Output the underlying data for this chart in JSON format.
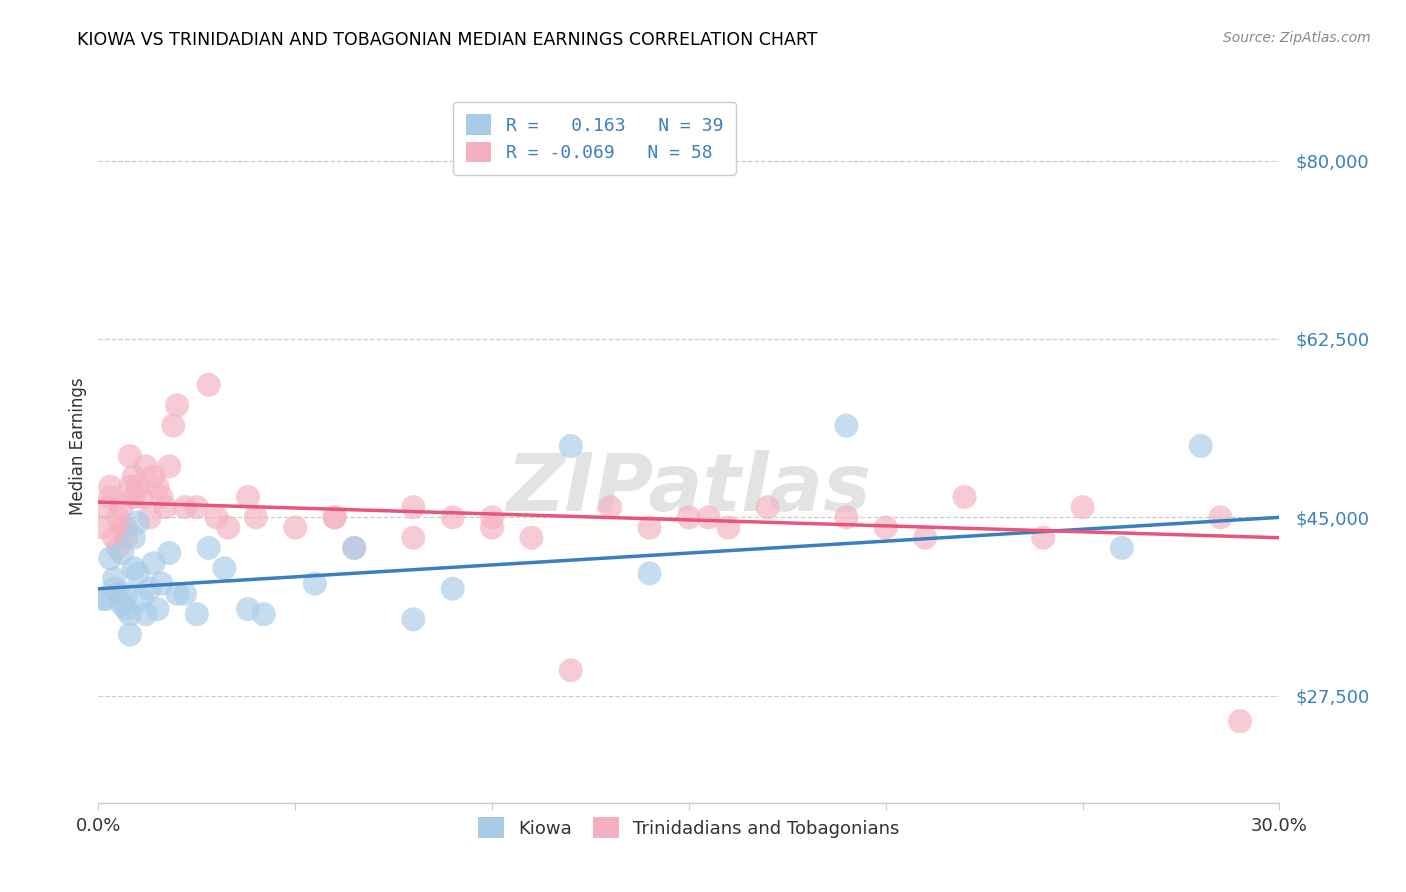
{
  "title": "KIOWA VS TRINIDADIAN AND TOBAGONIAN MEDIAN EARNINGS CORRELATION CHART",
  "source": "Source: ZipAtlas.com",
  "ylabel": "Median Earnings",
  "yticks": [
    27500,
    45000,
    62500,
    80000
  ],
  "ytick_labels": [
    "$27,500",
    "$45,000",
    "$62,500",
    "$80,000"
  ],
  "xlim": [
    0.0,
    0.3
  ],
  "ylim": [
    17000,
    87000
  ],
  "watermark": "ZIPatlas",
  "legend_r_kiowa": "0.163",
  "legend_n_kiowa": "39",
  "legend_r_tnt": "-0.069",
  "legend_n_tnt": "58",
  "kiowa_color": "#a8cce8",
  "tnt_color": "#f4b0c0",
  "kiowa_line_color": "#3a7fc1",
  "tnt_line_color": "#e8547a",
  "kiowa_x": [
    0.001,
    0.002,
    0.003,
    0.004,
    0.004,
    0.005,
    0.006,
    0.006,
    0.007,
    0.007,
    0.008,
    0.008,
    0.009,
    0.009,
    0.01,
    0.01,
    0.011,
    0.012,
    0.013,
    0.014,
    0.015,
    0.016,
    0.018,
    0.02,
    0.022,
    0.025,
    0.028,
    0.032,
    0.038,
    0.042,
    0.055,
    0.065,
    0.08,
    0.09,
    0.12,
    0.14,
    0.19,
    0.26,
    0.28
  ],
  "kiowa_y": [
    37000,
    37000,
    41000,
    38000,
    39000,
    37500,
    41500,
    36500,
    37500,
    36000,
    33500,
    35500,
    43000,
    40000,
    44500,
    39500,
    37000,
    35500,
    38000,
    40500,
    36000,
    38500,
    41500,
    37500,
    37500,
    35500,
    42000,
    40000,
    36000,
    35500,
    38500,
    42000,
    35000,
    38000,
    52000,
    39500,
    54000,
    42000,
    52000
  ],
  "tnt_x": [
    0.001,
    0.002,
    0.003,
    0.003,
    0.004,
    0.005,
    0.005,
    0.006,
    0.006,
    0.007,
    0.007,
    0.008,
    0.008,
    0.009,
    0.009,
    0.01,
    0.011,
    0.012,
    0.013,
    0.014,
    0.015,
    0.016,
    0.017,
    0.018,
    0.019,
    0.02,
    0.022,
    0.025,
    0.028,
    0.03,
    0.033,
    0.038,
    0.04,
    0.05,
    0.06,
    0.065,
    0.08,
    0.09,
    0.1,
    0.11,
    0.13,
    0.15,
    0.16,
    0.17,
    0.19,
    0.2,
    0.21,
    0.22,
    0.24,
    0.25,
    0.155,
    0.14,
    0.12,
    0.1,
    0.08,
    0.06,
    0.285,
    0.29
  ],
  "tnt_y": [
    44000,
    46000,
    47000,
    48000,
    43000,
    42000,
    45000,
    44000,
    46000,
    44000,
    43000,
    51000,
    48000,
    47000,
    49000,
    48000,
    47000,
    50000,
    45000,
    49000,
    48000,
    47000,
    46000,
    50000,
    54000,
    56000,
    46000,
    46000,
    58000,
    45000,
    44000,
    47000,
    45000,
    44000,
    45000,
    42000,
    46000,
    45000,
    45000,
    43000,
    46000,
    45000,
    44000,
    46000,
    45000,
    44000,
    43000,
    47000,
    43000,
    46000,
    45000,
    44000,
    30000,
    44000,
    43000,
    45000,
    45000,
    25000
  ]
}
